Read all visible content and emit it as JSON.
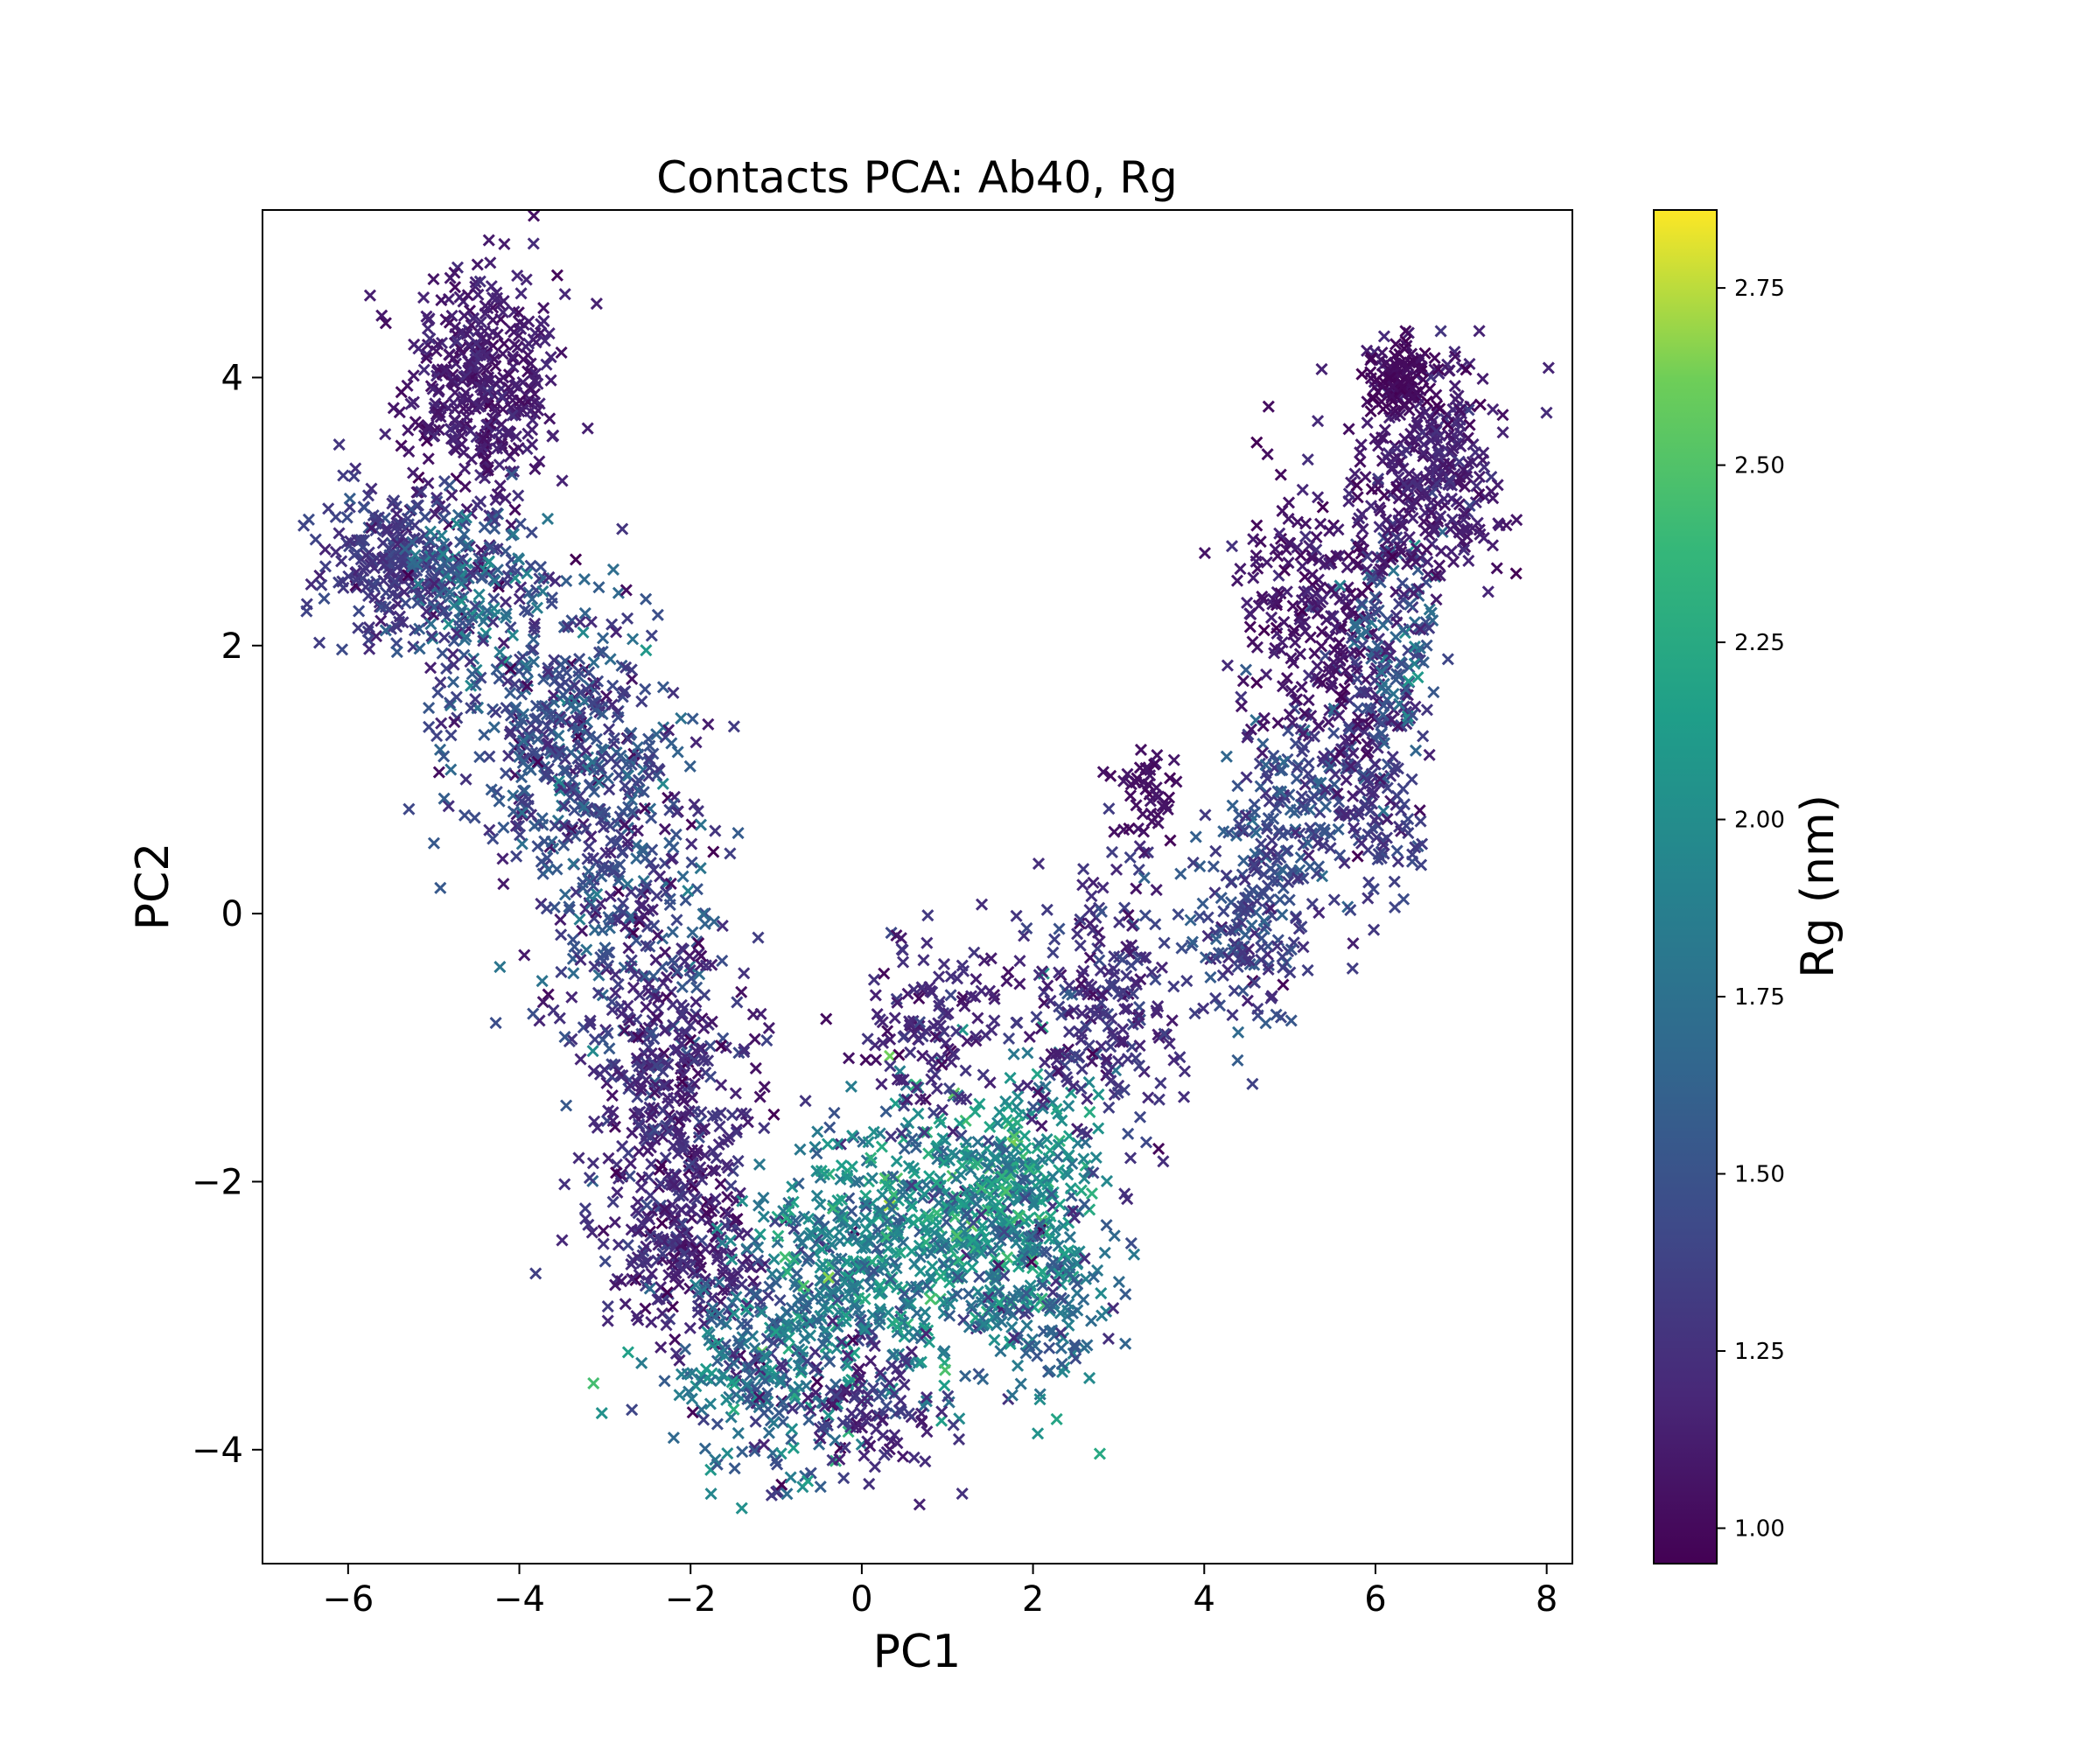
{
  "chart_data": {
    "type": "scatter",
    "title": "Contacts PCA: Ab40, Rg",
    "xlabel": "PC1",
    "ylabel": "PC2",
    "xlim": [
      -7.0,
      8.3
    ],
    "ylim": [
      -4.85,
      5.25
    ],
    "xticks": [
      -6,
      -4,
      -2,
      0,
      2,
      4,
      6,
      8
    ],
    "xtick_labels": [
      "−6",
      "−4",
      "−2",
      "0",
      "2",
      "4",
      "6",
      "8"
    ],
    "yticks": [
      -4,
      -2,
      0,
      2,
      4
    ],
    "ytick_labels": [
      "−4",
      "−2",
      "0",
      "2",
      "4"
    ],
    "grid": false,
    "marker": "x",
    "colormap": "viridis",
    "colorbar": {
      "label": "Rg (nm)",
      "range": [
        0.95,
        2.86
      ],
      "ticks": [
        1.0,
        1.25,
        1.5,
        1.75,
        2.0,
        2.25,
        2.5,
        2.75
      ],
      "tick_labels": [
        "1.00",
        "1.25",
        "1.50",
        "1.75",
        "2.00",
        "2.25",
        "2.50",
        "2.75"
      ]
    },
    "point_clusters": [
      {
        "x": -4.45,
        "y": 3.95,
        "sx": 0.45,
        "sy": 0.45,
        "n": 380,
        "rg": 1.12,
        "rg_sd": 0.06
      },
      {
        "x": -5.5,
        "y": 2.6,
        "sx": 0.4,
        "sy": 0.3,
        "n": 220,
        "rg": 1.3,
        "rg_sd": 0.08
      },
      {
        "x": -4.6,
        "y": 2.5,
        "sx": 0.45,
        "sy": 0.35,
        "n": 170,
        "rg": 1.6,
        "rg_sd": 0.25
      },
      {
        "x": -3.7,
        "y": 1.5,
        "sx": 0.6,
        "sy": 0.55,
        "n": 340,
        "rg": 1.45,
        "rg_sd": 0.2
      },
      {
        "x": -2.8,
        "y": 0.4,
        "sx": 0.55,
        "sy": 0.7,
        "n": 340,
        "rg": 1.4,
        "rg_sd": 0.2
      },
      {
        "x": -2.2,
        "y": -1.3,
        "sx": 0.5,
        "sy": 0.6,
        "n": 300,
        "rg": 1.2,
        "rg_sd": 0.12
      },
      {
        "x": -2.1,
        "y": -2.5,
        "sx": 0.5,
        "sy": 0.4,
        "n": 240,
        "rg": 1.2,
        "rg_sd": 0.12
      },
      {
        "x": -1.2,
        "y": -3.4,
        "sx": 0.55,
        "sy": 0.35,
        "n": 230,
        "rg": 1.65,
        "rg_sd": 0.3
      },
      {
        "x": -0.3,
        "y": -2.7,
        "sx": 0.5,
        "sy": 0.5,
        "n": 260,
        "rg": 1.8,
        "rg_sd": 0.25
      },
      {
        "x": 0.7,
        "y": -2.4,
        "sx": 0.6,
        "sy": 0.55,
        "n": 340,
        "rg": 1.9,
        "rg_sd": 0.28
      },
      {
        "x": 1.8,
        "y": -2.1,
        "sx": 0.45,
        "sy": 0.5,
        "n": 300,
        "rg": 2.0,
        "rg_sd": 0.25
      },
      {
        "x": 2.1,
        "y": -2.9,
        "sx": 0.45,
        "sy": 0.35,
        "n": 150,
        "rg": 1.7,
        "rg_sd": 0.25
      },
      {
        "x": 0.8,
        "y": -0.8,
        "sx": 0.5,
        "sy": 0.35,
        "n": 130,
        "rg": 1.2,
        "rg_sd": 0.1
      },
      {
        "x": 2.8,
        "y": -0.7,
        "sx": 0.45,
        "sy": 0.5,
        "n": 230,
        "rg": 1.25,
        "rg_sd": 0.12
      },
      {
        "x": 3.3,
        "y": 0.9,
        "sx": 0.2,
        "sy": 0.2,
        "n": 45,
        "rg": 1.05,
        "rg_sd": 0.04
      },
      {
        "x": 4.5,
        "y": -0.1,
        "sx": 0.35,
        "sy": 0.4,
        "n": 150,
        "rg": 1.4,
        "rg_sd": 0.15
      },
      {
        "x": 5.0,
        "y": 0.8,
        "sx": 0.35,
        "sy": 0.4,
        "n": 150,
        "rg": 1.45,
        "rg_sd": 0.15
      },
      {
        "x": 6.0,
        "y": 1.0,
        "sx": 0.3,
        "sy": 0.55,
        "n": 170,
        "rg": 1.3,
        "rg_sd": 0.12
      },
      {
        "x": 5.3,
        "y": 2.2,
        "sx": 0.45,
        "sy": 0.5,
        "n": 230,
        "rg": 1.08,
        "rg_sd": 0.06
      },
      {
        "x": 6.2,
        "y": 2.1,
        "sx": 0.3,
        "sy": 0.4,
        "n": 120,
        "rg": 1.5,
        "rg_sd": 0.2
      },
      {
        "x": 6.6,
        "y": 3.3,
        "sx": 0.45,
        "sy": 0.4,
        "n": 330,
        "rg": 1.15,
        "rg_sd": 0.08
      },
      {
        "x": 6.3,
        "y": 4.0,
        "sx": 0.2,
        "sy": 0.15,
        "n": 90,
        "rg": 1.0,
        "rg_sd": 0.03
      },
      {
        "x": 0.2,
        "y": -3.7,
        "sx": 0.4,
        "sy": 0.25,
        "n": 90,
        "rg": 1.2,
        "rg_sd": 0.1
      }
    ]
  }
}
